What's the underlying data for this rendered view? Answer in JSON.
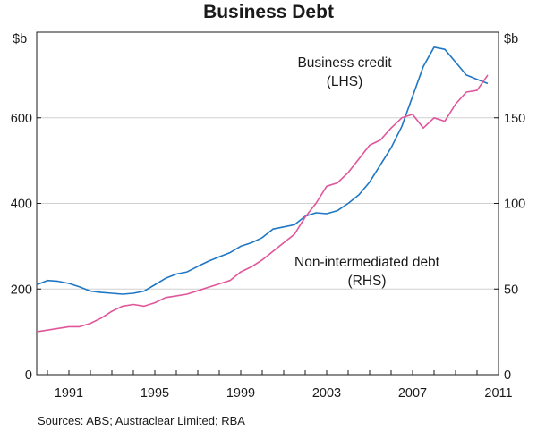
{
  "chart_data": {
    "type": "line",
    "title": "Business Debt",
    "left_unit": "$b",
    "right_unit": "$b",
    "x_ticks": [
      "1991",
      "1995",
      "1999",
      "2003",
      "2007",
      "2011"
    ],
    "x_tick_values": [
      1991,
      1995,
      1999,
      2003,
      2007,
      2011
    ],
    "xlim": [
      1989.5,
      2011
    ],
    "y_left": {
      "lim": [
        0,
        800
      ],
      "ticks": [
        0,
        200,
        400,
        600
      ],
      "labels": [
        "0",
        "200",
        "400",
        "600"
      ]
    },
    "y_right": {
      "lim": [
        0,
        200
      ],
      "ticks": [
        0,
        50,
        100,
        150
      ],
      "labels": [
        "0",
        "50",
        "100",
        "150"
      ]
    },
    "grid": true,
    "series": [
      {
        "name": "Business credit",
        "axis_label": "(LHS)",
        "axis": "left",
        "color": "#1f77c4",
        "x": [
          1989.5,
          1990,
          1990.5,
          1991,
          1991.5,
          1992,
          1992.5,
          1993,
          1993.5,
          1994,
          1994.5,
          1995,
          1995.5,
          1996,
          1996.5,
          1997,
          1997.5,
          1998,
          1998.5,
          1999,
          1999.5,
          2000,
          2000.5,
          2001,
          2001.5,
          2002,
          2002.5,
          2003,
          2003.5,
          2004,
          2004.5,
          2005,
          2005.5,
          2006,
          2006.5,
          2007,
          2007.5,
          2008,
          2008.5,
          2009,
          2009.5,
          2010,
          2010.5
        ],
        "y": [
          210,
          220,
          218,
          213,
          205,
          195,
          192,
          190,
          188,
          190,
          195,
          210,
          225,
          235,
          240,
          253,
          265,
          275,
          285,
          300,
          308,
          320,
          340,
          345,
          350,
          370,
          378,
          376,
          383,
          400,
          420,
          450,
          490,
          530,
          580,
          650,
          720,
          765,
          760,
          730,
          700,
          690,
          680
        ]
      },
      {
        "name": "Non-intermediated debt",
        "axis_label": "(RHS)",
        "axis": "right",
        "color": "#e0569b",
        "x": [
          1989.5,
          1990,
          1990.5,
          1991,
          1991.5,
          1992,
          1992.5,
          1993,
          1993.5,
          1994,
          1994.5,
          1995,
          1995.5,
          1996,
          1996.5,
          1997,
          1997.5,
          1998,
          1998.5,
          1999,
          1999.5,
          2000,
          2000.5,
          2001,
          2001.5,
          2002,
          2002.5,
          2003,
          2003.5,
          2004,
          2004.5,
          2005,
          2005.5,
          2006,
          2006.5,
          2007,
          2007.5,
          2008,
          2008.5,
          2009,
          2009.5,
          2010,
          2010.5
        ],
        "y": [
          25,
          26,
          27,
          28,
          28,
          30,
          33,
          37,
          40,
          41,
          40,
          42,
          45,
          46,
          47,
          49,
          51,
          53,
          55,
          60,
          63,
          67,
          72,
          77,
          82,
          92,
          100,
          110,
          112,
          118,
          126,
          134,
          137,
          144,
          150,
          152,
          144,
          150,
          148,
          158,
          165,
          166,
          175
        ]
      }
    ]
  },
  "source": "Sources: ABS; Austraclear Limited; RBA"
}
